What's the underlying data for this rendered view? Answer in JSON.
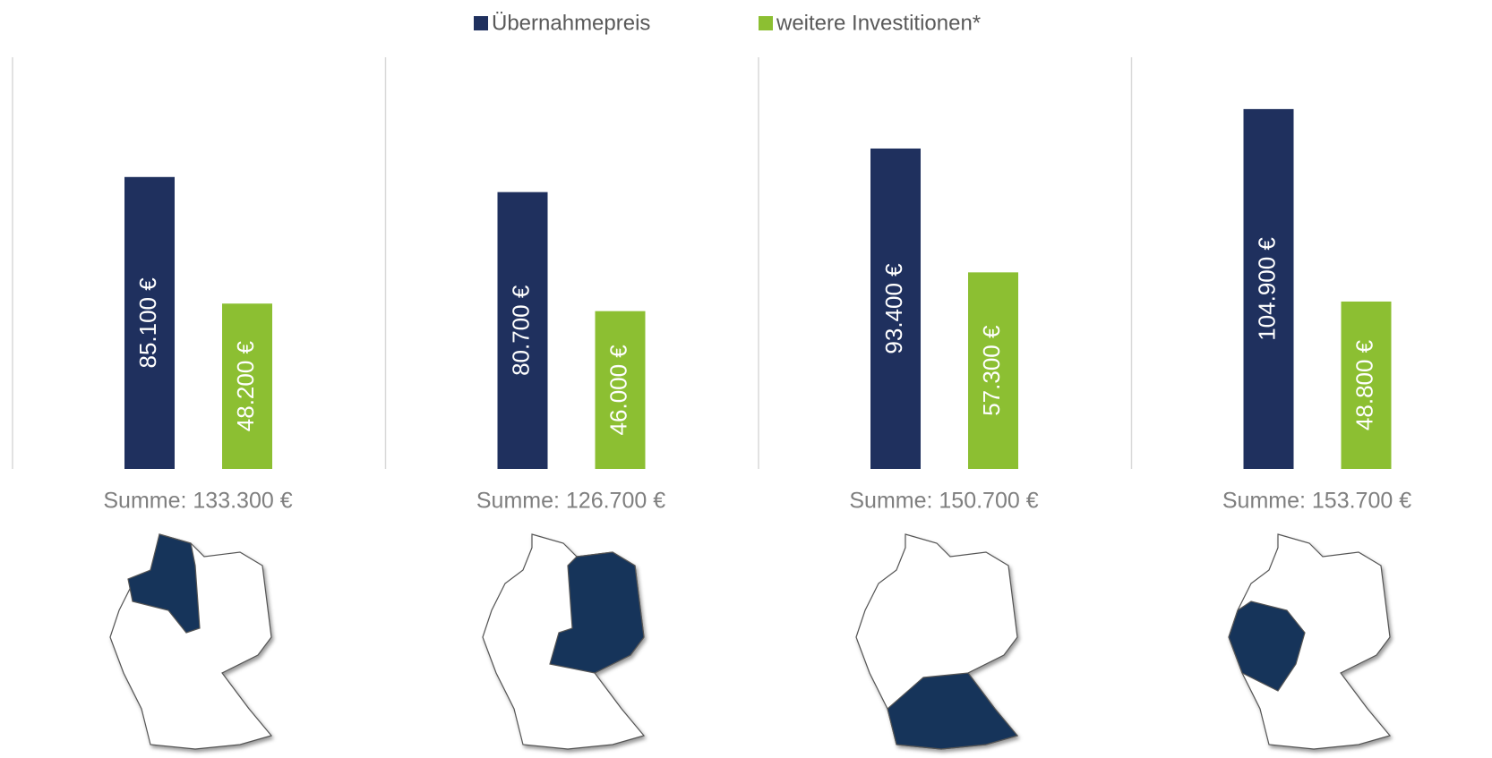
{
  "chart_data": {
    "type": "bar",
    "categories": [
      null,
      null,
      null,
      null
    ],
    "series": [
      {
        "name": "Übernahmepreis",
        "color": "#1f305e",
        "values": [
          85100,
          80700,
          93400,
          104900
        ],
        "value_labels": [
          "85.100 €",
          "80.700 €",
          "93.400 €",
          "104.900 €"
        ]
      },
      {
        "name": "weitere Investitionen*",
        "color": "#8cbf32",
        "values": [
          48200,
          46000,
          57300,
          48800
        ],
        "value_labels": [
          "48.200 €",
          "46.000 €",
          "57.300 €",
          "48.800 €"
        ]
      }
    ],
    "annotations": [
      "Summe: 133.300 €",
      "Summe: 126.700 €",
      "Summe: 150.700 €",
      "Summe: 153.700 €"
    ],
    "ylim": [
      0,
      120000
    ]
  }
}
